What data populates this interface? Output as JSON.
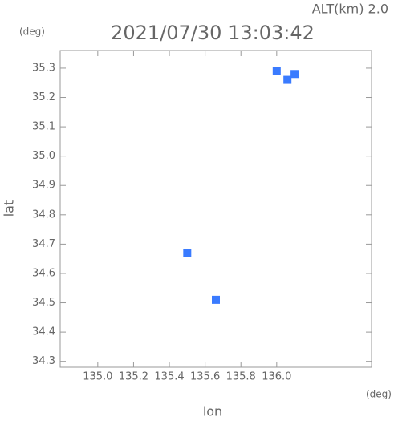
{
  "chart_data": {
    "type": "scatter",
    "title": "2021/07/30 13:03:42",
    "subtitle": "ALT(km) 2.0",
    "x_label": "lon",
    "y_label": "lat",
    "x_unit": "(deg)",
    "y_unit": "(deg)",
    "xlim": [
      134.79,
      136.53
    ],
    "ylim": [
      34.28,
      35.36
    ],
    "xticks": [
      {
        "value": 135.0,
        "label": "135.0"
      },
      135.2,
      135.4,
      135.6,
      135.8,
      {
        "value": 136.0,
        "label": "136.0"
      }
    ],
    "yticks": [
      34.3,
      34.4,
      34.5,
      34.6,
      34.7,
      34.8,
      34.9,
      {
        "value": 35.0,
        "label": "35.0"
      },
      35.1,
      35.2,
      35.3
    ],
    "series": [
      {
        "color": "#3a7bff",
        "x": [
          136.0,
          136.1,
          136.06,
          135.66,
          135.5
        ],
        "values": [
          35.29,
          35.28,
          35.26,
          34.51,
          34.67
        ]
      }
    ]
  }
}
